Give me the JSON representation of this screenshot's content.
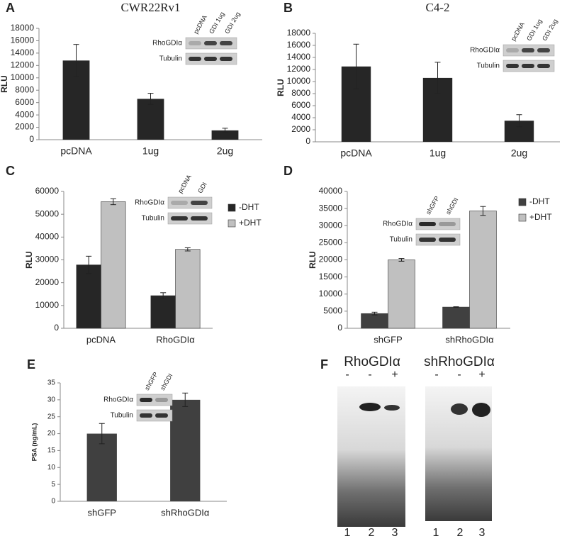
{
  "chart_data": [
    {
      "type": "bar",
      "panel": "A",
      "title": "CWR22Rv1",
      "ylabel": "RLU",
      "categories": [
        "pcDNA",
        "1ug",
        "2ug"
      ],
      "values": [
        12800,
        6600,
        1500
      ],
      "errors": [
        2600,
        900,
        350
      ],
      "color": "#262626",
      "ylim": [
        0,
        18000
      ],
      "yticks": [
        0,
        2000,
        4000,
        6000,
        8000,
        10000,
        12000,
        14000,
        16000,
        18000
      ],
      "inset": {
        "lanes": [
          "pcDNA",
          "GDI 1ug",
          "GDI 2ug"
        ],
        "rows": [
          "RhoGDIα",
          "Tubulin"
        ]
      }
    },
    {
      "type": "bar",
      "panel": "B",
      "title": "C4-2",
      "ylabel": "RLU",
      "categories": [
        "pcDNA",
        "1ug",
        "2ug"
      ],
      "values": [
        12500,
        10600,
        3500
      ],
      "errors": [
        3700,
        2600,
        1000
      ],
      "color": "#262626",
      "ylim": [
        0,
        18000
      ],
      "yticks": [
        0,
        2000,
        4000,
        6000,
        8000,
        10000,
        12000,
        14000,
        16000,
        18000
      ],
      "inset": {
        "lanes": [
          "pcDNA",
          "GDI 1ug",
          "GDI 2ug"
        ],
        "rows": [
          "RhoGDIα",
          "Tubulin"
        ]
      }
    },
    {
      "type": "grouped-bar",
      "panel": "C",
      "ylabel": "RLU",
      "categories": [
        "pcDNA",
        "RhoGDIα"
      ],
      "series": [
        {
          "name": "-DHT",
          "color": "#262626",
          "values": [
            27800,
            14300
          ],
          "errors": [
            3800,
            1300
          ]
        },
        {
          "name": "+DHT",
          "color": "#c0c0c0",
          "values": [
            55500,
            34600
          ],
          "errors": [
            1300,
            700
          ]
        }
      ],
      "ylim": [
        0,
        60000
      ],
      "yticks": [
        0,
        10000,
        20000,
        30000,
        40000,
        50000,
        60000
      ],
      "inset": {
        "lanes": [
          "pcDNA",
          "GDI"
        ],
        "rows": [
          "RhoGDIα",
          "Tubulin"
        ]
      }
    },
    {
      "type": "grouped-bar",
      "panel": "D",
      "ylabel": "RLU",
      "categories": [
        "shGFP",
        "shRhoGDIα"
      ],
      "series": [
        {
          "name": "-DHT",
          "color": "#404040",
          "values": [
            4300,
            6200
          ],
          "errors": [
            400,
            100
          ]
        },
        {
          "name": "+DHT",
          "color": "#c0c0c0",
          "values": [
            20000,
            34300
          ],
          "errors": [
            400,
            1300
          ]
        }
      ],
      "ylim": [
        0,
        40000
      ],
      "yticks": [
        0,
        5000,
        10000,
        15000,
        20000,
        25000,
        30000,
        35000,
        40000
      ],
      "inset": {
        "lanes": [
          "shGFP",
          "shGDI"
        ],
        "rows": [
          "RhoGDIα",
          "Tubulin"
        ]
      }
    },
    {
      "type": "bar",
      "panel": "E",
      "ylabel": "PSA (ng/mL)",
      "categories": [
        "shGFP",
        "shRhoGDIα"
      ],
      "values": [
        20,
        30
      ],
      "errors": [
        3,
        2
      ],
      "color": "#404040",
      "ylim": [
        0,
        35
      ],
      "yticks": [
        0,
        5,
        10,
        15,
        20,
        25,
        30,
        35
      ],
      "inset": {
        "lanes": [
          "shGFP",
          "shGDI"
        ],
        "rows": [
          "RhoGDIα",
          "Tubulin"
        ]
      }
    }
  ],
  "gel_panel": {
    "panel": "F",
    "gels": [
      {
        "label": "RhoGDIα",
        "treatments": [
          "-",
          "-",
          "+"
        ],
        "lanes": [
          "1",
          "2",
          "3"
        ]
      },
      {
        "label": "shRhoGDIα",
        "treatments": [
          "-",
          "-",
          "+"
        ],
        "lanes": [
          "1",
          "2",
          "3"
        ]
      }
    ]
  }
}
